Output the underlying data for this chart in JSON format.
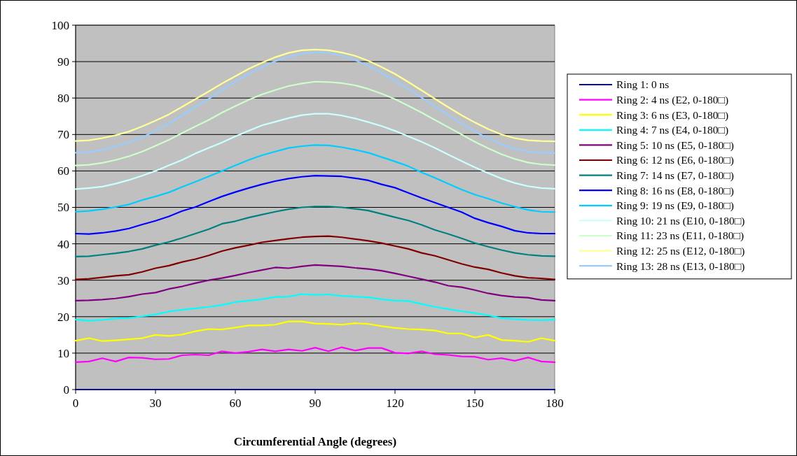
{
  "chart_data": {
    "type": "line",
    "xlabel": "Circumferential Angle (degrees)",
    "x": [
      0,
      5,
      10,
      15,
      20,
      25,
      30,
      35,
      40,
      45,
      50,
      55,
      60,
      65,
      70,
      75,
      80,
      85,
      90,
      95,
      100,
      105,
      110,
      115,
      120,
      125,
      130,
      135,
      140,
      145,
      150,
      155,
      160,
      165,
      170,
      175,
      180
    ],
    "xlim": [
      0,
      180
    ],
    "xticks": [
      0,
      30,
      60,
      90,
      120,
      150,
      180
    ],
    "ylim": [
      0,
      100
    ],
    "yticks": [
      0,
      10,
      20,
      30,
      40,
      50,
      60,
      70,
      80,
      90,
      100
    ],
    "grid": "y",
    "legend": "right",
    "marker": "none",
    "line_style": "solid",
    "series": [
      {
        "name": "Ring 1: 0 ns",
        "color": "#000080",
        "values": [
          0,
          0,
          0,
          0,
          0,
          0,
          0,
          0,
          0,
          0,
          0,
          0,
          0,
          0,
          0,
          0,
          0,
          0,
          0,
          0,
          0,
          0,
          0,
          0,
          0,
          0,
          0,
          0,
          0,
          0,
          0,
          0,
          0,
          0,
          0,
          0,
          0
        ]
      },
      {
        "name": "Ring 2: 4 ns (E2, 0-180□)",
        "color": "#ff00ff",
        "values": [
          7.5,
          7.7,
          8.6,
          7.7,
          8.8,
          8.7,
          8.3,
          8.4,
          9.4,
          9.6,
          9.4,
          10.5,
          10,
          10.4,
          11,
          10.5,
          11,
          10.6,
          11.5,
          10.5,
          11.6,
          10.7,
          11.4,
          11.4,
          10.1,
          9.9,
          10.5,
          9.7,
          9.5,
          9.1,
          9,
          8.2,
          8.6,
          7.9,
          8.8,
          7.7,
          7.5
        ]
      },
      {
        "name": "Ring 3: 6 ns (E3, 0-180□)",
        "color": "#ffff00",
        "values": [
          13.4,
          14.1,
          13.3,
          13.5,
          13.8,
          14.1,
          15,
          14.7,
          15.1,
          16,
          16.6,
          16.5,
          17,
          17.6,
          17.6,
          17.8,
          18.7,
          18.7,
          18.1,
          18,
          17.8,
          18.2,
          18,
          17.4,
          16.9,
          16.6,
          16.5,
          16.2,
          15.4,
          15.4,
          14.3,
          15,
          13.6,
          13.4,
          13.1,
          14.1,
          13.4
        ]
      },
      {
        "name": "Ring 4: 7 ns (E4, 0-180□)",
        "color": "#00ffff",
        "values": [
          19.2,
          18.9,
          19.1,
          19.5,
          19.6,
          20.1,
          20.6,
          21.4,
          21.9,
          22.3,
          22.7,
          23.2,
          24,
          24.4,
          24.8,
          25.4,
          25.5,
          26.2,
          26,
          26.1,
          25.7,
          25.5,
          25.3,
          24.8,
          24.4,
          24.3,
          23.5,
          22.7,
          22.1,
          21.5,
          21,
          20.4,
          19.6,
          19.3,
          19.1,
          19,
          19.2
        ]
      },
      {
        "name": "Ring 5: 10 ns (E5, 0-180□)",
        "color": "#800080",
        "values": [
          24.4,
          24.5,
          24.7,
          25,
          25.5,
          26.2,
          26.6,
          27.6,
          28.3,
          29.2,
          30,
          30.6,
          31.3,
          32.1,
          32.8,
          33.5,
          33.3,
          33.8,
          34.2,
          34,
          33.8,
          33.4,
          33.1,
          32.6,
          31.9,
          31.1,
          30.3,
          29.5,
          28.5,
          28.1,
          27.3,
          26.4,
          25.8,
          25.4,
          25.2,
          24.6,
          24.4
        ]
      },
      {
        "name": "Ring 6: 12 ns (E6, 0-180□)",
        "color": "#800000",
        "values": [
          30.2,
          30.4,
          30.8,
          31.2,
          31.5,
          32.3,
          33.3,
          34,
          35,
          35.8,
          36.8,
          38,
          38.9,
          39.6,
          40.4,
          40.9,
          41.4,
          41.8,
          42,
          42.1,
          41.8,
          41.3,
          40.8,
          40.2,
          39.4,
          38.6,
          37.5,
          36.7,
          35.6,
          34.5,
          33.6,
          33,
          32,
          31.2,
          30.7,
          30.5,
          30.2
        ]
      },
      {
        "name": "Ring 7: 14 ns (E7, 0-180□)",
        "color": "#008080",
        "values": [
          36.5,
          36.6,
          37,
          37.4,
          37.9,
          38.6,
          39.6,
          40.5,
          41.6,
          42.8,
          44,
          45.5,
          46.2,
          47.2,
          48,
          48.8,
          49.5,
          50,
          50.2,
          50.2,
          50,
          49.6,
          49.1,
          48.2,
          47.3,
          46.4,
          45.2,
          43.8,
          42.7,
          41.5,
          40.2,
          39.2,
          38.3,
          37.5,
          37,
          36.7,
          36.6
        ]
      },
      {
        "name": "Ring 8: 16 ns (E8, 0-180□)",
        "color": "#0000ff",
        "values": [
          42.8,
          42.7,
          43,
          43.5,
          44.2,
          45.3,
          46.3,
          47.5,
          49,
          50.1,
          51.6,
          53,
          54.2,
          55.3,
          56.3,
          57.2,
          57.9,
          58.4,
          58.7,
          58.6,
          58.5,
          58,
          57.4,
          56.3,
          55.4,
          54,
          52.6,
          51.3,
          50,
          48.7,
          47,
          45.8,
          44.8,
          43.6,
          43,
          42.8,
          42.8
        ]
      },
      {
        "name": "Ring 9: 19 ns (E9, 0-180□)",
        "color": "#00ccff",
        "values": [
          48.8,
          49,
          49.5,
          50.1,
          50.8,
          52,
          53,
          54.1,
          55.6,
          57,
          58.5,
          60,
          61.5,
          63,
          64.3,
          65.3,
          66.3,
          66.8,
          67.1,
          67,
          66.5,
          65.8,
          65,
          63.8,
          62.6,
          61.3,
          59.6,
          58.1,
          56.5,
          54.9,
          53.5,
          52.4,
          51.2,
          50.2,
          49.3,
          48.8,
          48.7
        ]
      },
      {
        "name": "Ring 10: 21 ns (E10, 0-180□)",
        "color": "#ccffff",
        "values": [
          55,
          55.3,
          55.7,
          56.5,
          57.5,
          58.7,
          60,
          61.5,
          63,
          64.8,
          66.3,
          67.8,
          69.5,
          71,
          72.5,
          73.5,
          74.5,
          75.3,
          75.7,
          75.7,
          75.2,
          74.4,
          73.4,
          72.3,
          71,
          69.5,
          68,
          66.3,
          64.5,
          62.7,
          61,
          59.4,
          57.9,
          56.7,
          55.8,
          55.3,
          55.1
        ]
      },
      {
        "name": "Ring 11: 23 ns (E11, 0-180□)",
        "color": "#ccffcc",
        "values": [
          61.5,
          61.7,
          62.2,
          63,
          64,
          65.3,
          66.9,
          68.5,
          70.4,
          72.2,
          74,
          76,
          77.8,
          79.5,
          81,
          82.2,
          83.3,
          84,
          84.5,
          84.4,
          84.1,
          83.5,
          82.5,
          81.2,
          79.7,
          77.9,
          76,
          74,
          72,
          70,
          68,
          66.2,
          64.6,
          63.3,
          62.3,
          61.8,
          61.6
        ]
      },
      {
        "name": "Ring 12: 25 ns (E12, 0-180□)",
        "color": "#ffff99",
        "values": [
          68.2,
          68.4,
          69,
          69.8,
          70.8,
          72.2,
          73.8,
          75.5,
          77.6,
          79.7,
          81.8,
          84,
          86,
          88,
          89.7,
          91.2,
          92.4,
          93.1,
          93.3,
          93.1,
          92.5,
          91.6,
          90.2,
          88.5,
          86.6,
          84.4,
          82.1,
          79.8,
          77.5,
          75.3,
          73.3,
          71.5,
          70,
          69,
          68.4,
          68.2,
          68.1
        ]
      },
      {
        "name": "Ring 13: 28 ns (E13, 0-180□)",
        "color": "#99ccff",
        "values": [
          65,
          65.2,
          65.8,
          66.7,
          67.8,
          69.2,
          71,
          73,
          75.2,
          77.5,
          79.8,
          82.2,
          84.5,
          86.6,
          88.5,
          90.1,
          91.3,
          92.2,
          92.6,
          92.4,
          91.7,
          90.4,
          88.8,
          86.9,
          84.8,
          82.5,
          80.1,
          77.7,
          75.3,
          73,
          70.8,
          68.9,
          67.3,
          66.1,
          65.3,
          65,
          64.9
        ]
      }
    ]
  }
}
